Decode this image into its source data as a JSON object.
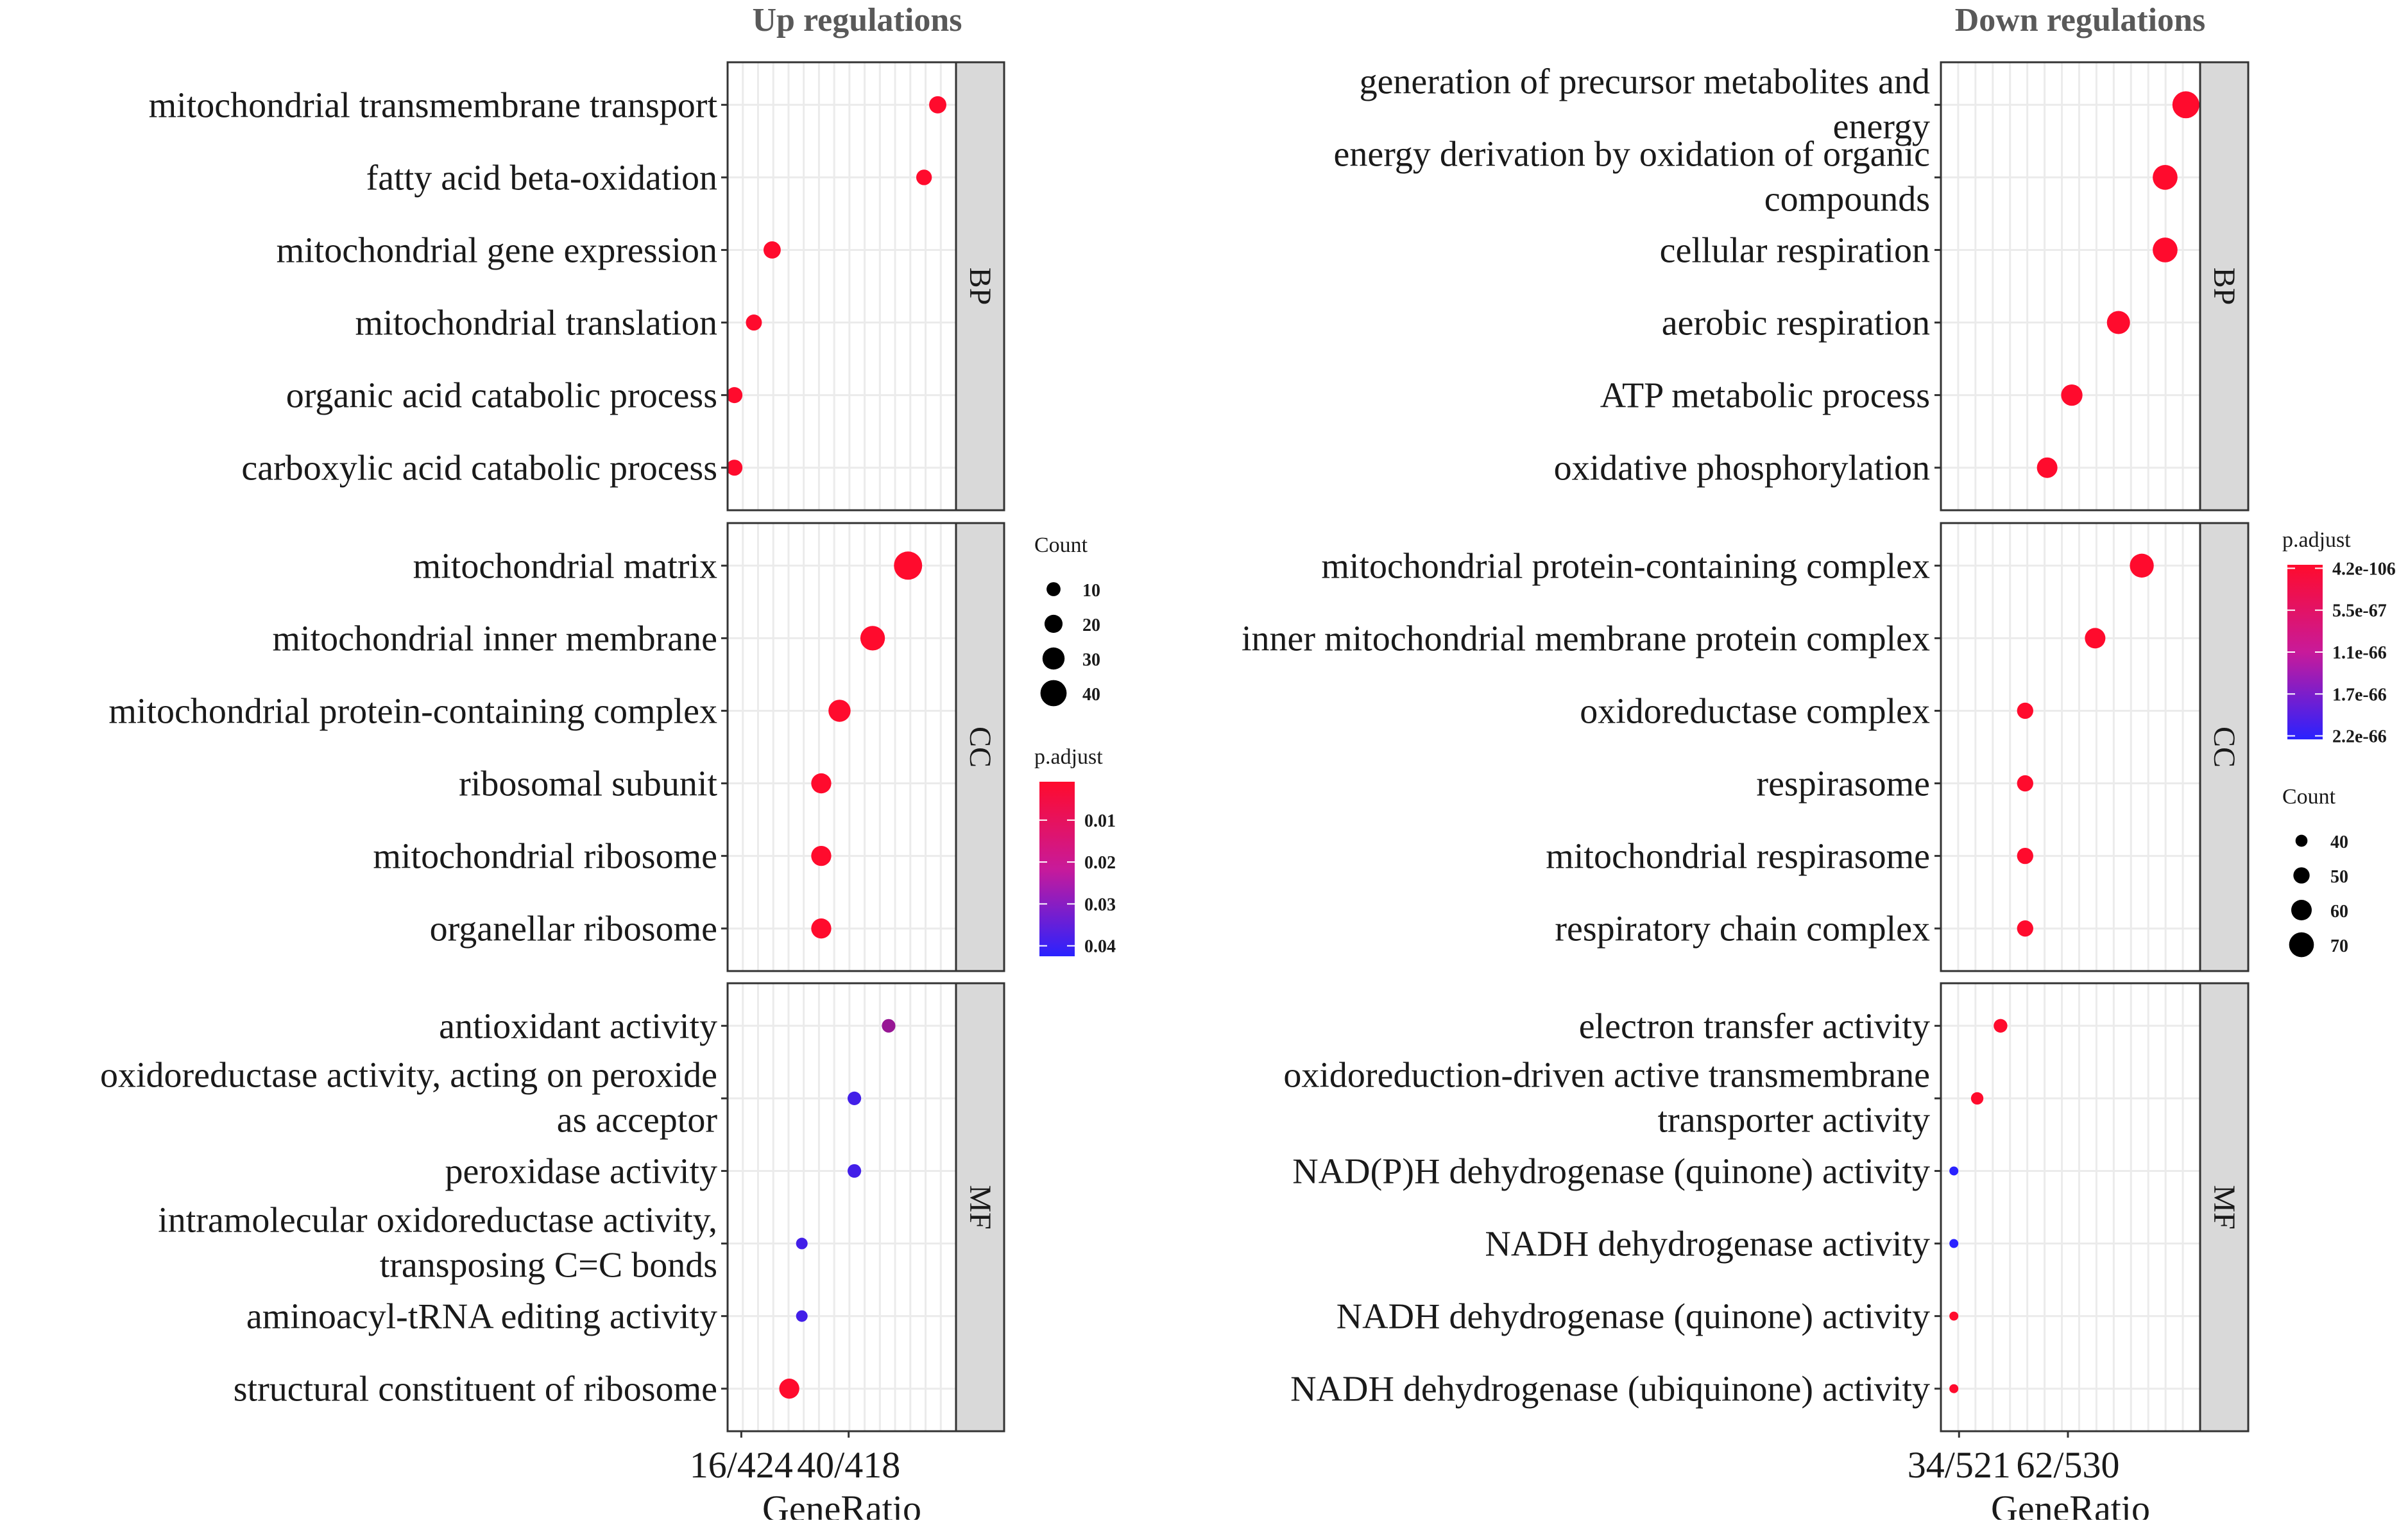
{
  "colors": {
    "low_padj": "#ff0b2d",
    "high_padj": "#2a22ff",
    "grid": "#ebebeb",
    "strip": "#d9d9d9",
    "panel_border": "#333333"
  },
  "chart_data": [
    {
      "type": "scatter",
      "title": "Up regulations",
      "xlabel": "GeneRatio",
      "ylabel": "",
      "x_ticks": [
        "16/424",
        "40/418"
      ],
      "grid": true,
      "facets": [
        {
          "strip": "BP",
          "terms": [
            {
              "label": "mitochondrial transmembrane transport",
              "x": 0.92,
              "count": 18,
              "padj": 0.0
            },
            {
              "label": "fatty acid beta-oxidation",
              "x": 0.86,
              "count": 14,
              "padj": 0.0
            },
            {
              "label": "mitochondrial gene expression",
              "x": 0.195,
              "count": 18,
              "padj": 0.0
            },
            {
              "label": "mitochondrial translation",
              "x": 0.115,
              "count": 15,
              "padj": 0.0
            },
            {
              "label": "organic acid catabolic process",
              "x": 0.03,
              "count": 15,
              "padj": 0.0
            },
            {
              "label": "carboxylic acid catabolic process",
              "x": 0.03,
              "count": 15,
              "padj": 0.0
            }
          ]
        },
        {
          "strip": "CC",
          "terms": [
            {
              "label": "mitochondrial matrix",
              "x": 0.79,
              "count": 45,
              "padj": 0.0
            },
            {
              "label": "mitochondrial inner membrane",
              "x": 0.635,
              "count": 36,
              "padj": 0.0
            },
            {
              "label": "mitochondrial protein-containing complex",
              "x": 0.49,
              "count": 30,
              "padj": 0.0
            },
            {
              "label": "ribosomal subunit",
              "x": 0.41,
              "count": 25,
              "padj": 0.0
            },
            {
              "label": "mitochondrial ribosome",
              "x": 0.41,
              "count": 25,
              "padj": 0.0
            },
            {
              "label": "organellar ribosome",
              "x": 0.41,
              "count": 25,
              "padj": 0.0
            }
          ]
        },
        {
          "strip": "MF",
          "terms": [
            {
              "label": "antioxidant activity",
              "x": 0.705,
              "count": 9,
              "padj": 0.022
            },
            {
              "label": "oxidoreductase activity, acting on peroxide as acceptor",
              "x": 0.555,
              "count": 9,
              "padj": 0.04
            },
            {
              "label": "peroxidase activity",
              "x": 0.555,
              "count": 9,
              "padj": 0.04
            },
            {
              "label": "intramolecular oxidoreductase activity, transposing C=C bonds",
              "x": 0.325,
              "count": 4,
              "padj": 0.04
            },
            {
              "label": "aminoacyl-tRNA editing activity",
              "x": 0.325,
              "count": 4,
              "padj": 0.04
            },
            {
              "label": "structural constituent of ribosome",
              "x": 0.27,
              "count": 25,
              "padj": 0.0
            }
          ]
        }
      ],
      "legend_count": {
        "title": "Count",
        "values": [
          10,
          20,
          30,
          40
        ]
      },
      "legend_padj": {
        "title": "p.adjust",
        "labels": [
          "0.01",
          "0.02",
          "0.03",
          "0.04"
        ]
      }
    },
    {
      "type": "scatter",
      "title": "Down regulations",
      "xlabel": "GeneRatio",
      "ylabel": "",
      "x_ticks": [
        "34/521",
        "62/530"
      ],
      "grid": true,
      "facets": [
        {
          "strip": "BP",
          "terms": [
            {
              "label": "generation of precursor metabolites and energy",
              "x": 0.945,
              "count": 75,
              "padj": 0.0
            },
            {
              "label": "energy derivation by oxidation of organic compounds",
              "x": 0.865,
              "count": 70,
              "padj": 0.0
            },
            {
              "label": "cellular respiration",
              "x": 0.865,
              "count": 70,
              "padj": 0.0
            },
            {
              "label": "aerobic respiration",
              "x": 0.685,
              "count": 66,
              "padj": 0.0
            },
            {
              "label": "ATP metabolic process",
              "x": 0.505,
              "count": 62,
              "padj": 0.0
            },
            {
              "label": "oxidative phosphorylation",
              "x": 0.41,
              "count": 60,
              "padj": 0.0
            }
          ]
        },
        {
          "strip": "CC",
          "terms": [
            {
              "label": "mitochondrial protein-containing complex",
              "x": 0.775,
              "count": 68,
              "padj": 0.0
            },
            {
              "label": "inner mitochondrial membrane protein complex",
              "x": 0.595,
              "count": 60,
              "padj": 0.0
            },
            {
              "label": "oxidoreductase complex",
              "x": 0.325,
              "count": 50,
              "padj": 0.0
            },
            {
              "label": "respirasome",
              "x": 0.325,
              "count": 50,
              "padj": 0.0
            },
            {
              "label": "mitochondrial respirasome",
              "x": 0.325,
              "count": 50,
              "padj": 0.0
            },
            {
              "label": "respiratory chain complex",
              "x": 0.325,
              "count": 50,
              "padj": 0.0
            }
          ]
        },
        {
          "strip": "MF",
          "terms": [
            {
              "label": "electron transfer activity",
              "x": 0.23,
              "count": 44,
              "padj": 0.0
            },
            {
              "label": "oxidoreduction-driven active transmembrane transporter activity",
              "x": 0.14,
              "count": 41,
              "padj": 0.0
            },
            {
              "label": "NAD(P)H dehydrogenase (quinone) activity",
              "x": 0.05,
              "count": 33,
              "padj": 2.2e-66
            },
            {
              "label": "NADH dehydrogenase activity",
              "x": 0.05,
              "count": 33,
              "padj": 2.2e-66
            },
            {
              "label": "NADH dehydrogenase (quinone) activity",
              "x": 0.05,
              "count": 33,
              "padj": 0.0
            },
            {
              "label": "NADH dehydrogenase (ubiquinone) activity",
              "x": 0.05,
              "count": 33,
              "padj": 0.0
            }
          ]
        }
      ],
      "legend_count": {
        "title": "Count",
        "values": [
          40,
          50,
          60,
          70
        ]
      },
      "legend_padj": {
        "title": "p.adjust",
        "labels": [
          "4.2e-106",
          "5.5e-67",
          "1.1e-66",
          "1.7e-66",
          "2.2e-66"
        ]
      }
    }
  ]
}
